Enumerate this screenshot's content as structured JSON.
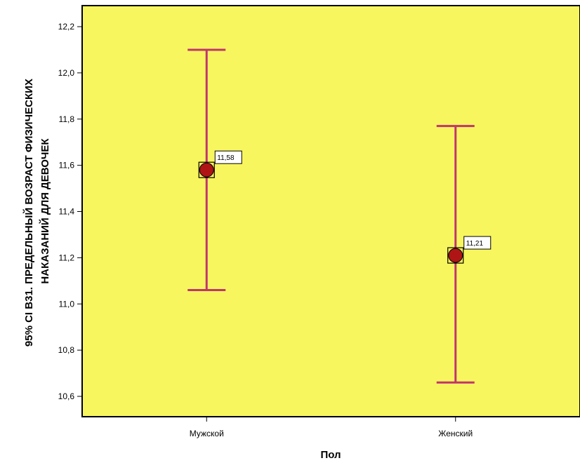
{
  "chart_data": {
    "type": "errorbar",
    "categories": [
      "Мужской",
      "Женский"
    ],
    "series": [
      {
        "means": [
          11.58,
          11.21
        ],
        "lower": [
          11.06,
          10.66
        ],
        "upper": [
          12.1,
          11.77
        ],
        "mean_labels": [
          "11,58",
          "11,21"
        ]
      }
    ],
    "xlabel": "Пол",
    "ylabel_lines": [
      "95% CI В31. ПРЕДЕЛЬНЫЙ ВОЗРАСТ ФИЗИЧЕСКИХ",
      "НАКАЗАНИЙ ДЛЯ ДЕВОЧЕК"
    ],
    "ylim": [
      10.5,
      12.3
    ],
    "yticks": [
      10.6,
      10.8,
      11.0,
      11.2,
      11.4,
      11.6,
      11.8,
      12.0,
      12.2
    ],
    "ytick_labels": [
      "10,6",
      "10,8",
      "11,0",
      "11,2",
      "11,4",
      "11,6",
      "11,8",
      "12,0",
      "12,2"
    ],
    "grid": false,
    "colors": {
      "plot_background": "#f8f65e",
      "error_bar": "#c1356c",
      "marker_fill": "#b01515"
    }
  }
}
